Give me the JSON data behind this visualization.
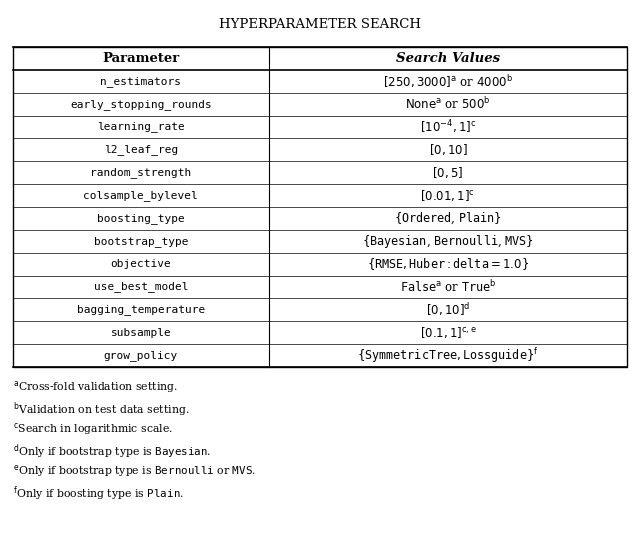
{
  "title": "Hyperparameter Search",
  "header": [
    "Parameter",
    "Search Values"
  ],
  "rows": [
    [
      "n_estimators",
      "[250, 3000]^a or 4000^b"
    ],
    [
      "early_stopping_rounds",
      "None^a or 500^b"
    ],
    [
      "learning_rate",
      "[10^{-4}, 1]^c"
    ],
    [
      "l2_leaf_reg",
      "[0, 10]"
    ],
    [
      "random_strength",
      "[0, 5]"
    ],
    [
      "colsample_bylevel",
      "[0.01, 1]^c"
    ],
    [
      "boosting_type",
      "{Ordered, Plain}"
    ],
    [
      "bootstrap_type",
      "{Bayesian, Bernoulli, MVS}"
    ],
    [
      "objective",
      "{RMSE, Huber : delta = 1.0}"
    ],
    [
      "use_best_model",
      "False^a or True^b"
    ],
    [
      "bagging_temperature",
      "[0, 10]^d"
    ],
    [
      "subsample",
      "[0.1, 1]^{c,e}"
    ],
    [
      "grow_policy",
      "{SymmetricTree, Lossguide}^f"
    ]
  ],
  "footnotes": [
    "^a Cross-fold validation setting.",
    "^b Validation on test data setting.",
    "^c Search in logarithmic scale.",
    "^d Only if bootstrap type is Bayesian.",
    "^e Only if bootstrap type is Bernoulli or MVS.",
    "^f Only if boosting type is Plain."
  ],
  "bg_color": "#ffffff",
  "border_color": "#000000",
  "text_color": "#000000"
}
